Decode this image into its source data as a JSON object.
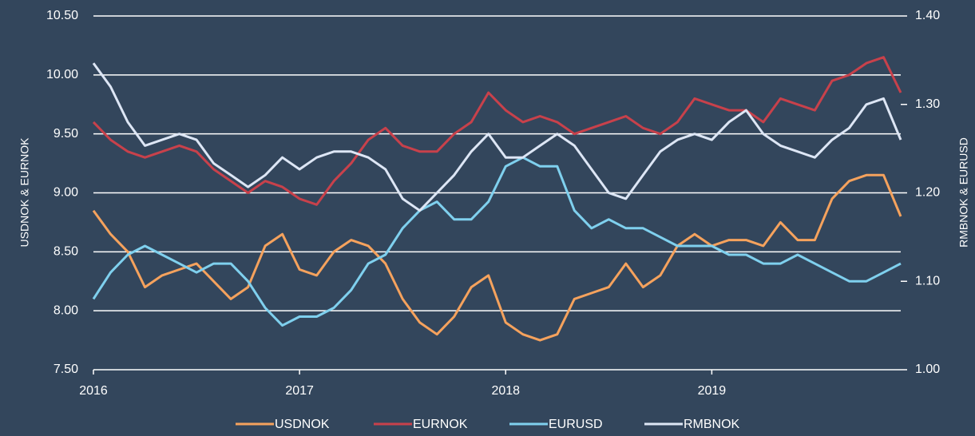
{
  "chart_data": {
    "type": "line",
    "categories": [
      "2016",
      null,
      null,
      null,
      null,
      null,
      null,
      null,
      null,
      null,
      null,
      null,
      "2017",
      null,
      null,
      null,
      null,
      null,
      null,
      null,
      null,
      null,
      null,
      null,
      "2018",
      null,
      null,
      null,
      null,
      null,
      null,
      null,
      null,
      null,
      null,
      null,
      "2019",
      null,
      null,
      null,
      null,
      null,
      null,
      null,
      null,
      null,
      null,
      null
    ],
    "ylabel": "USDNOK  & EURNOK",
    "y2label": "RMBNOK  & EURUSD",
    "ylim": [
      7.5,
      10.5
    ],
    "yticks": [
      {
        "value": 7.5,
        "label": "7.50"
      },
      {
        "value": 8,
        "label": "8.00"
      },
      {
        "value": 8.5,
        "label": "8.50"
      },
      {
        "value": 9,
        "label": "9.00"
      },
      {
        "value": 9.5,
        "label": "9.50"
      },
      {
        "value": 10,
        "label": "10.00"
      },
      {
        "value": 10.5,
        "label": "10.50"
      }
    ],
    "y2lim": [
      1.0,
      1.4
    ],
    "y2ticks": [
      {
        "value": 1.0,
        "label": "1.00"
      },
      {
        "value": 1.1,
        "label": "1.10"
      },
      {
        "value": 1.2,
        "label": "1.20"
      },
      {
        "value": 1.3,
        "label": "1.30"
      },
      {
        "value": 1.4,
        "label": "1.40"
      }
    ],
    "grid": true,
    "legend": "bottom",
    "series": [
      {
        "name": "USDNOK",
        "color": "#f5a25d",
        "values": [
          8.85,
          8.65,
          8.5,
          8.2,
          8.3,
          8.35,
          8.4,
          8.25,
          8.1,
          8.2,
          8.55,
          8.65,
          8.35,
          8.3,
          8.5,
          8.6,
          8.55,
          8.4,
          8.1,
          7.9,
          7.8,
          7.95,
          8.2,
          8.3,
          7.9,
          7.8,
          7.75,
          7.8,
          8.1,
          8.15,
          8.2,
          8.4,
          8.2,
          8.3,
          8.55,
          8.65,
          8.55,
          8.6,
          8.6,
          8.55,
          8.75,
          8.6,
          8.6,
          8.95,
          9.1,
          9.15,
          9.15,
          8.8
        ]
      },
      {
        "name": "EURNOK",
        "color": "#c8414b",
        "values": [
          9.6,
          9.45,
          9.35,
          9.3,
          9.35,
          9.4,
          9.35,
          9.2,
          9.1,
          9.0,
          9.1,
          9.05,
          8.95,
          8.9,
          9.1,
          9.25,
          9.45,
          9.55,
          9.4,
          9.35,
          9.35,
          9.5,
          9.6,
          9.85,
          9.7,
          9.6,
          9.65,
          9.6,
          9.5,
          9.55,
          9.6,
          9.65,
          9.55,
          9.5,
          9.6,
          9.8,
          9.75,
          9.7,
          9.7,
          9.6,
          9.8,
          9.75,
          9.7,
          9.95,
          10.0,
          10.1,
          10.15,
          9.85
        ]
      },
      {
        "name": "EURUSD",
        "color": "#7fd0ee",
        "axis": "y2",
        "values": [
          1.08,
          1.11,
          1.13,
          1.14,
          1.13,
          1.12,
          1.11,
          1.12,
          1.12,
          1.1,
          1.07,
          1.05,
          1.06,
          1.06,
          1.07,
          1.09,
          1.12,
          1.13,
          1.16,
          1.18,
          1.19,
          1.17,
          1.17,
          1.19,
          1.23,
          1.24,
          1.23,
          1.23,
          1.18,
          1.16,
          1.17,
          1.16,
          1.16,
          1.15,
          1.14,
          1.14,
          1.14,
          1.13,
          1.13,
          1.12,
          1.12,
          1.13,
          1.12,
          1.11,
          1.1,
          1.1,
          1.11,
          1.12
        ]
      },
      {
        "name": "RMBNOK",
        "color": "#dde6f5",
        "values": [
          10.1,
          9.9,
          9.6,
          9.4,
          9.45,
          9.5,
          9.45,
          9.25,
          9.15,
          9.05,
          9.15,
          9.3,
          9.2,
          9.3,
          9.35,
          9.35,
          9.3,
          9.2,
          8.95,
          8.85,
          9.0,
          9.15,
          9.35,
          9.5,
          9.3,
          9.3,
          9.4,
          9.5,
          9.4,
          9.2,
          9.0,
          8.95,
          9.15,
          9.35,
          9.45,
          9.5,
          9.45,
          9.6,
          9.7,
          9.5,
          9.4,
          9.35,
          9.3,
          9.45,
          9.55,
          9.75,
          9.8,
          9.45
        ]
      }
    ]
  }
}
